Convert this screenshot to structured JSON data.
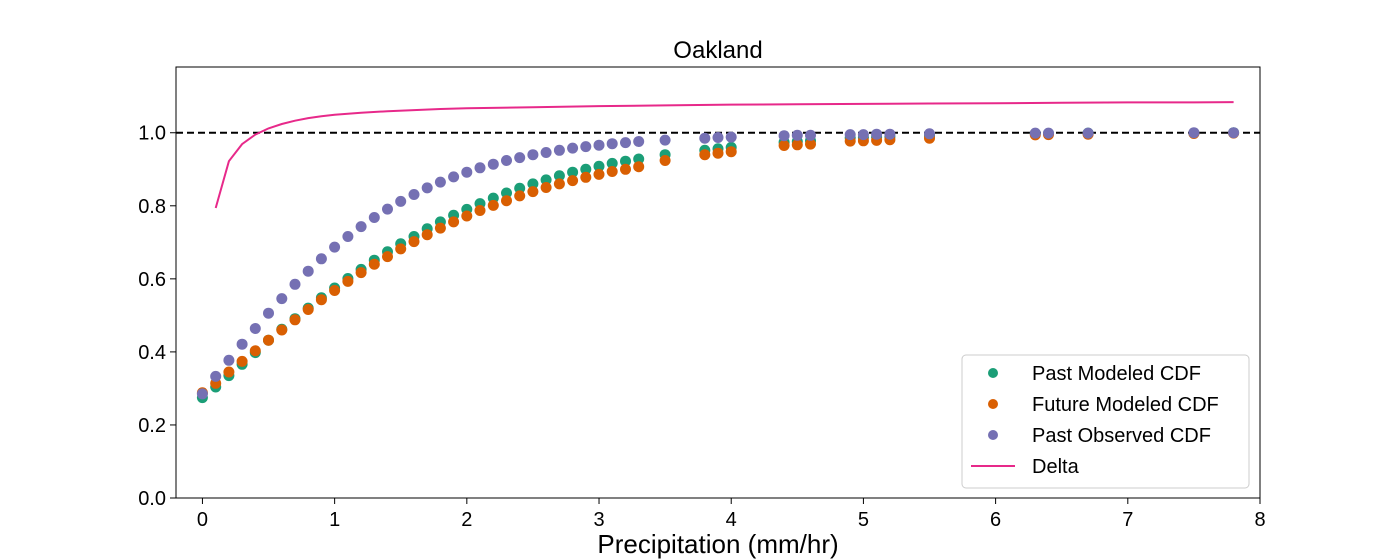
{
  "chart_data": {
    "type": "scatter",
    "title": "Oakland",
    "xlabel": "Precipitation (mm/hr)",
    "ylabel": "",
    "xlim": [
      -0.2,
      8.0
    ],
    "ylim": [
      0.0,
      1.18
    ],
    "xticks": [
      0,
      1,
      2,
      3,
      4,
      5,
      6,
      7,
      8
    ],
    "yticks": [
      0.0,
      0.2,
      0.4,
      0.6,
      0.8,
      1.0
    ],
    "grid": false,
    "legend_position": "lower right",
    "reference_line": {
      "y": 1.0,
      "style": "dashed",
      "color": "#000000"
    },
    "series": [
      {
        "name": "Past Modeled CDF",
        "kind": "scatter",
        "color": "#1b9e77",
        "x": [
          0,
          0.1,
          0.2,
          0.3,
          0.4,
          0.5,
          0.6,
          0.7,
          0.8,
          0.9,
          1.0,
          1.1,
          1.2,
          1.3,
          1.4,
          1.5,
          1.6,
          1.7,
          1.8,
          1.9,
          2.0,
          2.1,
          2.2,
          2.3,
          2.4,
          2.5,
          2.6,
          2.7,
          2.8,
          2.9,
          3.0,
          3.1,
          3.2,
          3.3,
          3.5,
          3.8,
          3.9,
          4.0,
          4.4,
          4.5,
          4.6,
          4.9,
          5.0,
          5.1,
          5.2,
          5.5,
          6.3,
          6.4,
          6.7,
          7.5,
          7.8
        ],
        "y": [
          0.275,
          0.304,
          0.335,
          0.366,
          0.398,
          0.432,
          0.462,
          0.491,
          0.52,
          0.548,
          0.575,
          0.601,
          0.626,
          0.651,
          0.674,
          0.696,
          0.716,
          0.737,
          0.756,
          0.774,
          0.79,
          0.806,
          0.821,
          0.835,
          0.848,
          0.86,
          0.871,
          0.882,
          0.892,
          0.9,
          0.908,
          0.916,
          0.922,
          0.928,
          0.94,
          0.952,
          0.956,
          0.96,
          0.974,
          0.976,
          0.978,
          0.986,
          0.987,
          0.988,
          0.989,
          0.992,
          0.998,
          0.998,
          0.999,
          0.999,
          1.0
        ]
      },
      {
        "name": "Future Modeled CDF",
        "kind": "scatter",
        "color": "#d95f02",
        "x": [
          0,
          0.1,
          0.2,
          0.3,
          0.4,
          0.5,
          0.6,
          0.7,
          0.8,
          0.9,
          1.0,
          1.1,
          1.2,
          1.3,
          1.4,
          1.5,
          1.6,
          1.7,
          1.8,
          1.9,
          2.0,
          2.1,
          2.2,
          2.3,
          2.4,
          2.5,
          2.6,
          2.7,
          2.8,
          2.9,
          3.0,
          3.1,
          3.2,
          3.3,
          3.5,
          3.8,
          3.9,
          4.0,
          4.4,
          4.5,
          4.6,
          4.9,
          5.0,
          5.1,
          5.2,
          5.5,
          6.3,
          6.4,
          6.7,
          7.5,
          7.8
        ],
        "y": [
          0.288,
          0.314,
          0.345,
          0.374,
          0.403,
          0.432,
          0.46,
          0.488,
          0.516,
          0.543,
          0.568,
          0.593,
          0.617,
          0.64,
          0.661,
          0.682,
          0.702,
          0.721,
          0.739,
          0.756,
          0.772,
          0.787,
          0.801,
          0.814,
          0.827,
          0.839,
          0.85,
          0.86,
          0.869,
          0.878,
          0.886,
          0.894,
          0.9,
          0.907,
          0.924,
          0.94,
          0.944,
          0.948,
          0.965,
          0.967,
          0.969,
          0.977,
          0.978,
          0.979,
          0.981,
          0.985,
          0.994,
          0.995,
          0.996,
          0.998,
          0.999
        ]
      },
      {
        "name": "Past Observed CDF",
        "kind": "scatter",
        "color": "#7570b3",
        "x": [
          0,
          0.1,
          0.2,
          0.3,
          0.4,
          0.5,
          0.6,
          0.7,
          0.8,
          0.9,
          1.0,
          1.1,
          1.2,
          1.3,
          1.4,
          1.5,
          1.6,
          1.7,
          1.8,
          1.9,
          2.0,
          2.1,
          2.2,
          2.3,
          2.4,
          2.5,
          2.6,
          2.7,
          2.8,
          2.9,
          3.0,
          3.1,
          3.2,
          3.3,
          3.5,
          3.8,
          3.9,
          4.0,
          4.4,
          4.5,
          4.6,
          4.9,
          5.0,
          5.1,
          5.2,
          5.5,
          6.3,
          6.4,
          6.7,
          7.5,
          7.8
        ],
        "y": [
          0.285,
          0.333,
          0.377,
          0.421,
          0.464,
          0.506,
          0.546,
          0.585,
          0.621,
          0.655,
          0.687,
          0.716,
          0.743,
          0.768,
          0.791,
          0.812,
          0.831,
          0.849,
          0.865,
          0.879,
          0.892,
          0.904,
          0.914,
          0.924,
          0.932,
          0.94,
          0.946,
          0.952,
          0.958,
          0.962,
          0.966,
          0.97,
          0.973,
          0.976,
          0.98,
          0.985,
          0.987,
          0.988,
          0.992,
          0.993,
          0.993,
          0.995,
          0.995,
          0.996,
          0.996,
          0.997,
          0.999,
          0.999,
          0.999,
          1.0,
          1.0
        ]
      },
      {
        "name": "Delta",
        "kind": "line",
        "color": "#e7298a",
        "x": [
          0.1,
          0.2,
          0.3,
          0.4,
          0.5,
          0.6,
          0.7,
          0.8,
          0.9,
          1.0,
          1.2,
          1.4,
          1.6,
          1.8,
          2.0,
          2.5,
          3.0,
          3.5,
          4.0,
          4.5,
          5.0,
          5.5,
          6.0,
          6.5,
          7.0,
          7.5,
          7.8
        ],
        "y": [
          0.794,
          0.922,
          0.969,
          0.995,
          1.012,
          1.024,
          1.033,
          1.04,
          1.045,
          1.049,
          1.055,
          1.059,
          1.062,
          1.065,
          1.067,
          1.07,
          1.073,
          1.075,
          1.077,
          1.078,
          1.079,
          1.08,
          1.081,
          1.082,
          1.083,
          1.083,
          1.084
        ]
      }
    ]
  }
}
